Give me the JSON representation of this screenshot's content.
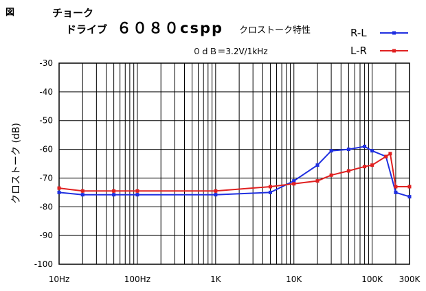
{
  "header": {
    "figure_label": "図",
    "line1": "チョーク",
    "line2_prefix": "ドライブ",
    "line2_model": "６０８０cspp",
    "line2_suffix": "クロストーク特性",
    "reference": "０ｄＢ＝3.2V/1kHz"
  },
  "chart_data": {
    "type": "line",
    "x_scale": "log",
    "y_scale": "linear",
    "xlim": [
      10,
      300000
    ],
    "ylim": [
      -100,
      -30
    ],
    "grid": true,
    "legend_position": "top-right",
    "ylabel": "クロストーク (dB)",
    "x_ticks": [
      {
        "value": 10,
        "label": "10Hz"
      },
      {
        "value": 100,
        "label": "100Hz"
      },
      {
        "value": 1000,
        "label": "1K"
      },
      {
        "value": 10000,
        "label": "10K"
      },
      {
        "value": 100000,
        "label": "100K"
      },
      {
        "value": 300000,
        "label": "300K"
      }
    ],
    "y_ticks": [
      {
        "value": -30,
        "label": "-30"
      },
      {
        "value": -40,
        "label": "-40"
      },
      {
        "value": -50,
        "label": "-50"
      },
      {
        "value": -60,
        "label": "-60"
      },
      {
        "value": -70,
        "label": "-70"
      },
      {
        "value": -80,
        "label": "-80"
      },
      {
        "value": -90,
        "label": "-90"
      },
      {
        "value": -100,
        "label": "-100"
      }
    ],
    "series": [
      {
        "name": "R-L",
        "color": "#1f2fe0",
        "points": [
          [
            10,
            -75
          ],
          [
            20,
            -75.8
          ],
          [
            50,
            -75.8
          ],
          [
            100,
            -75.8
          ],
          [
            1000,
            -75.8
          ],
          [
            5000,
            -75
          ],
          [
            10000,
            -71
          ],
          [
            20000,
            -65.5
          ],
          [
            30000,
            -60.5
          ],
          [
            50000,
            -60
          ],
          [
            80000,
            -59
          ],
          [
            100000,
            -60.5
          ],
          [
            150000,
            -62.5
          ],
          [
            200000,
            -75
          ],
          [
            300000,
            -76.5
          ]
        ]
      },
      {
        "name": "L-R",
        "color": "#e02020",
        "points": [
          [
            10,
            -73.5
          ],
          [
            20,
            -74.5
          ],
          [
            50,
            -74.5
          ],
          [
            100,
            -74.5
          ],
          [
            1000,
            -74.5
          ],
          [
            5000,
            -73
          ],
          [
            10000,
            -72
          ],
          [
            20000,
            -71
          ],
          [
            30000,
            -69
          ],
          [
            50000,
            -67.5
          ],
          [
            80000,
            -66
          ],
          [
            100000,
            -65.5
          ],
          [
            150000,
            -62.5
          ],
          [
            170000,
            -61.5
          ],
          [
            200000,
            -73
          ],
          [
            300000,
            -73
          ]
        ]
      }
    ]
  }
}
